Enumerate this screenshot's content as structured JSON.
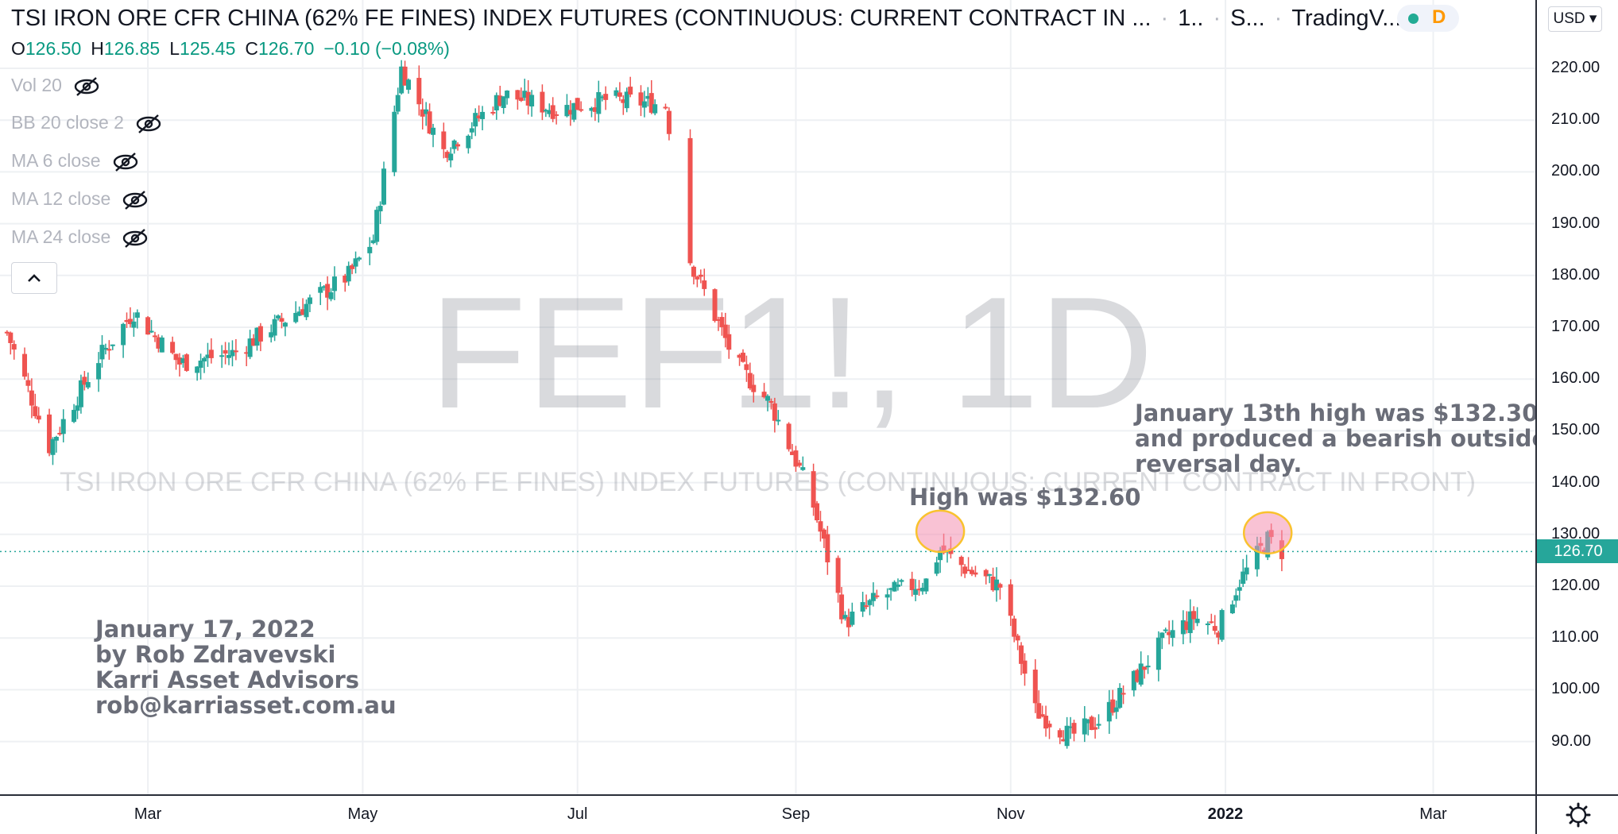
{
  "header": {
    "title": "TSI IRON ORE CFR CHINA (62% FE FINES) INDEX FUTURES (CONTINUOUS: CURRENT CONTRACT IN ...",
    "interval": "1..",
    "exchange": "S...",
    "source": "TradingV...",
    "status_letter": "D"
  },
  "ohlc": {
    "o_label": "O",
    "o": "126.50",
    "h_label": "H",
    "h": "126.85",
    "l_label": "L",
    "l": "125.45",
    "c_label": "C",
    "c": "126.70",
    "change": "−0.10 (−0.08%)"
  },
  "indicators": [
    "Vol 20",
    "BB 20 close 2",
    "MA 6 close",
    "MA 12 close",
    "MA 24 close"
  ],
  "watermark": {
    "symbol": "FEF1!, 1D",
    "name": "TSI IRON ORE CFR CHINA (62% FE FINES) INDEX FUTURES (CONTINUOUS: CURRENT CONTRACT IN FRONT)"
  },
  "annotations": {
    "author": [
      "January 17, 2022",
      "by Rob Zdravevski",
      "Karri Asset Advisors",
      "rob@karriasset.com.au"
    ],
    "high1": "High was $132.60",
    "high2": [
      "January 13th high was $132.30",
      "and produced a bearish outside",
      "reversal day."
    ]
  },
  "price_axis": {
    "currency": "USD",
    "ticks": [
      "220.00",
      "210.00",
      "200.00",
      "190.00",
      "180.00",
      "170.00",
      "160.00",
      "150.00",
      "140.00",
      "130.00",
      "120.00",
      "110.00",
      "100.00",
      "90.00"
    ],
    "last_price": "126.70"
  },
  "time_axis": {
    "months": [
      "Mar",
      "May",
      "Jul",
      "Sep",
      "Nov",
      "2022",
      "Mar"
    ]
  },
  "colors": {
    "up": "#26a69a",
    "down": "#ef5350",
    "last_price_line": "#26a69a",
    "highlight_fill": "#f48fb1",
    "highlight_stroke": "#f9c22e"
  },
  "chart_data": {
    "type": "candlestick",
    "title": "TSI IRON ORE CFR CHINA (62% FE FINES) INDEX FUTURES (CONTINUOUS: CURRENT CONTRACT IN FRONT)",
    "symbol": "FEF1!",
    "interval": "1D",
    "ylim": [
      82,
      228
    ],
    "ytick_values": [
      220,
      210,
      200,
      190,
      180,
      170,
      160,
      150,
      140,
      130,
      120,
      110,
      100,
      90
    ],
    "x_range": [
      "2021-01-18",
      "2022-03-30"
    ],
    "last_price": 126.7,
    "series_close_approx": [
      {
        "date": "2021-01-20",
        "close": 169
      },
      {
        "date": "2021-02-01",
        "close": 147
      },
      {
        "date": "2021-02-15",
        "close": 164
      },
      {
        "date": "2021-02-25",
        "close": 173
      },
      {
        "date": "2021-03-10",
        "close": 163
      },
      {
        "date": "2021-03-25",
        "close": 165
      },
      {
        "date": "2021-04-10",
        "close": 172
      },
      {
        "date": "2021-04-27",
        "close": 180
      },
      {
        "date": "2021-05-04",
        "close": 187
      },
      {
        "date": "2021-05-12",
        "close": 220
      },
      {
        "date": "2021-05-24",
        "close": 204
      },
      {
        "date": "2021-06-10",
        "close": 215
      },
      {
        "date": "2021-06-25",
        "close": 212
      },
      {
        "date": "2021-07-10",
        "close": 214
      },
      {
        "date": "2021-07-26",
        "close": 213
      },
      {
        "date": "2021-08-02",
        "close": 183
      },
      {
        "date": "2021-08-15",
        "close": 163
      },
      {
        "date": "2021-08-25",
        "close": 155
      },
      {
        "date": "2021-09-05",
        "close": 138
      },
      {
        "date": "2021-09-15",
        "close": 113
      },
      {
        "date": "2021-09-25",
        "close": 118
      },
      {
        "date": "2021-10-08",
        "close": 121
      },
      {
        "date": "2021-10-12",
        "close": 127
      },
      {
        "date": "2021-10-20",
        "close": 123
      },
      {
        "date": "2021-10-29",
        "close": 120
      },
      {
        "date": "2021-11-08",
        "close": 96
      },
      {
        "date": "2021-11-18",
        "close": 91
      },
      {
        "date": "2021-11-26",
        "close": 94
      },
      {
        "date": "2021-12-06",
        "close": 102
      },
      {
        "date": "2021-12-15",
        "close": 110
      },
      {
        "date": "2021-12-23",
        "close": 114
      },
      {
        "date": "2021-12-30",
        "close": 112
      },
      {
        "date": "2022-01-05",
        "close": 121
      },
      {
        "date": "2022-01-13",
        "close": 129
      },
      {
        "date": "2022-01-17",
        "close": 126.7
      }
    ],
    "highlights": [
      {
        "date": "2021-10-12",
        "high": 132.6,
        "label": "High was $132.60"
      },
      {
        "date": "2022-01-13",
        "high": 132.3,
        "label": "January 13th high was $132.30"
      }
    ]
  }
}
